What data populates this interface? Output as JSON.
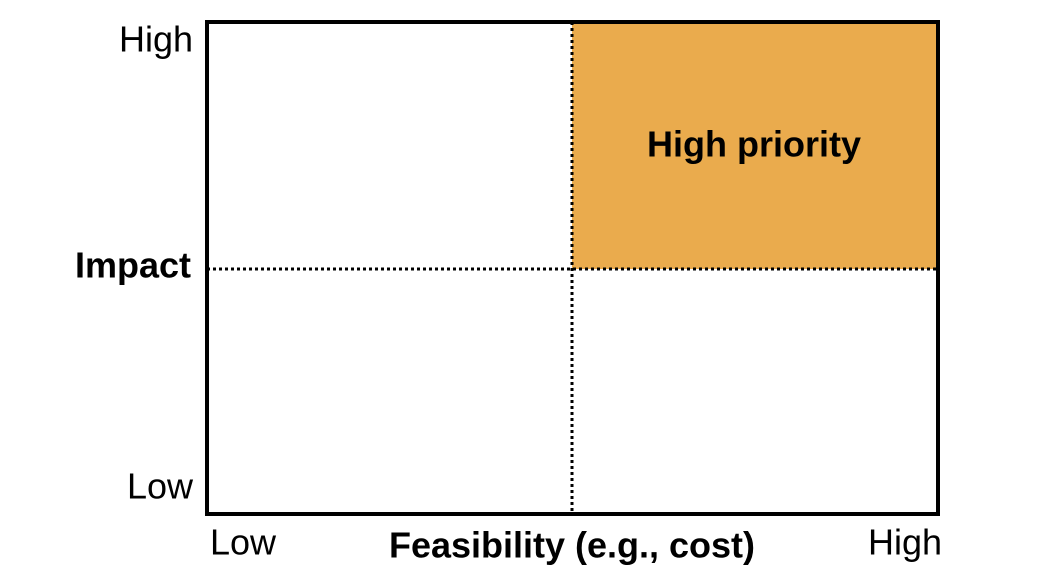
{
  "y_axis": {
    "label": "Impact",
    "high": "High",
    "low": "Low"
  },
  "x_axis": {
    "label": "Feasibility (e.g., cost)",
    "low": "Low",
    "high": "High"
  },
  "quadrants": {
    "top_right": "High priority"
  }
}
